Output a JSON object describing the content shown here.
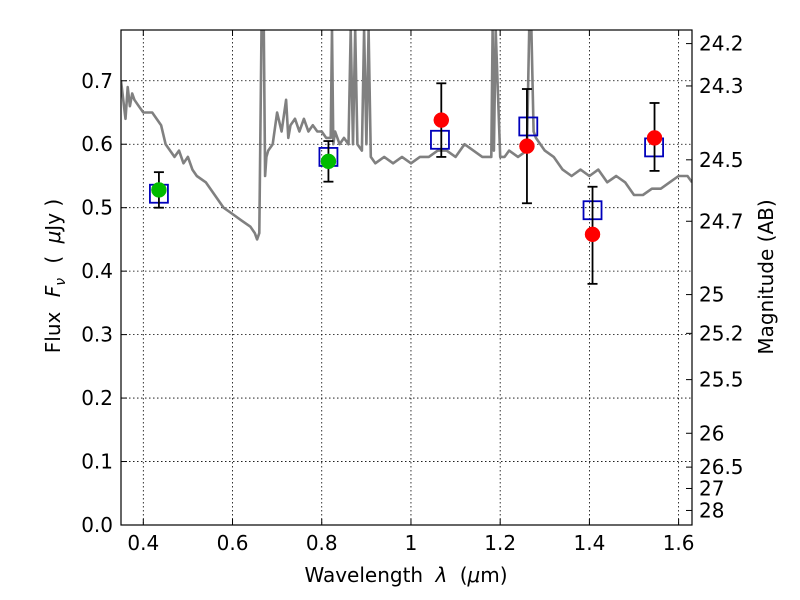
{
  "chart_data": {
    "type": "scatter",
    "xlabel_parts": {
      "pre": "Wavelength",
      "sym": "λ",
      "open": "(",
      "unit_mu": "μ",
      "unit_rest": "m)"
    },
    "ylabel_parts": {
      "pre": "Flux",
      "sym": "F",
      "sub": "ν",
      "open": "(",
      "unit_mu": "μ",
      "unit_rest": "Jy )"
    },
    "y2label": "Magnitude (AB)",
    "xlim": [
      0.35,
      1.63
    ],
    "ylim": [
      0.0,
      0.78
    ],
    "grid": true,
    "x_ticks": [
      {
        "value": 0.4,
        "label": "0.4"
      },
      {
        "value": 0.6,
        "label": "0.6"
      },
      {
        "value": 0.8,
        "label": "0.8"
      },
      {
        "value": 1.0,
        "label": "1"
      },
      {
        "value": 1.2,
        "label": "1.2"
      },
      {
        "value": 1.4,
        "label": "1.4"
      },
      {
        "value": 1.6,
        "label": "1.6"
      }
    ],
    "y_ticks": [
      {
        "value": 0.0,
        "label": "0.0"
      },
      {
        "value": 0.1,
        "label": "0.1"
      },
      {
        "value": 0.2,
        "label": "0.2"
      },
      {
        "value": 0.3,
        "label": "0.3"
      },
      {
        "value": 0.4,
        "label": "0.4"
      },
      {
        "value": 0.5,
        "label": "0.5"
      },
      {
        "value": 0.6,
        "label": "0.6"
      },
      {
        "value": 0.7,
        "label": "0.7"
      }
    ],
    "y2_ticks": [
      {
        "mag": 24.2,
        "label": "24.2"
      },
      {
        "mag": 24.3,
        "label": "24.3"
      },
      {
        "mag": 24.5,
        "label": "24.5"
      },
      {
        "mag": 24.7,
        "label": "24.7"
      },
      {
        "mag": 25.0,
        "label": "25"
      },
      {
        "mag": 25.2,
        "label": "25.2"
      },
      {
        "mag": 25.5,
        "label": "25.5"
      },
      {
        "mag": 26.0,
        "label": "26"
      },
      {
        "mag": 26.5,
        "label": "26.5"
      },
      {
        "mag": 27.0,
        "label": "27"
      },
      {
        "mag": 28.0,
        "label": "28"
      }
    ],
    "series": [
      {
        "kind": "line",
        "color": "#808080",
        "x": [
          0.35,
          0.36,
          0.365,
          0.37,
          0.375,
          0.38,
          0.39,
          0.4,
          0.42,
          0.44,
          0.45,
          0.46,
          0.47,
          0.48,
          0.49,
          0.5,
          0.51,
          0.52,
          0.54,
          0.56,
          0.58,
          0.6,
          0.62,
          0.64,
          0.65,
          0.655,
          0.66,
          0.665,
          0.67,
          0.673,
          0.676,
          0.68,
          0.69,
          0.7,
          0.71,
          0.72,
          0.725,
          0.73,
          0.74,
          0.75,
          0.76,
          0.77,
          0.78,
          0.79,
          0.8,
          0.81,
          0.82,
          0.823,
          0.826,
          0.83,
          0.84,
          0.85,
          0.86,
          0.865,
          0.87,
          0.875,
          0.88,
          0.89,
          0.895,
          0.9,
          0.905,
          0.91,
          0.92,
          0.94,
          0.96,
          0.98,
          1.0,
          1.02,
          1.04,
          1.06,
          1.08,
          1.1,
          1.12,
          1.14,
          1.16,
          1.18,
          1.183,
          1.186,
          1.19,
          1.2,
          1.21,
          1.22,
          1.24,
          1.26,
          1.265,
          1.27,
          1.275,
          1.28,
          1.3,
          1.32,
          1.34,
          1.36,
          1.38,
          1.4,
          1.42,
          1.44,
          1.46,
          1.48,
          1.5,
          1.52,
          1.54,
          1.56,
          1.58,
          1.6,
          1.62,
          1.63
        ],
        "y": [
          0.7,
          0.64,
          0.69,
          0.66,
          0.68,
          0.67,
          0.66,
          0.65,
          0.65,
          0.63,
          0.6,
          0.59,
          0.58,
          0.59,
          0.57,
          0.58,
          0.56,
          0.55,
          0.54,
          0.52,
          0.5,
          0.49,
          0.48,
          0.47,
          0.46,
          0.45,
          0.46,
          0.78,
          0.78,
          0.55,
          0.58,
          0.59,
          0.6,
          0.65,
          0.62,
          0.67,
          0.61,
          0.63,
          0.64,
          0.62,
          0.64,
          0.62,
          0.63,
          0.62,
          0.62,
          0.61,
          0.61,
          0.78,
          0.6,
          0.62,
          0.6,
          0.61,
          0.6,
          0.78,
          0.6,
          0.78,
          0.6,
          0.59,
          0.78,
          0.6,
          0.78,
          0.58,
          0.57,
          0.58,
          0.57,
          0.58,
          0.57,
          0.58,
          0.58,
          0.59,
          0.59,
          0.58,
          0.6,
          0.59,
          0.58,
          0.58,
          0.78,
          0.59,
          0.78,
          0.58,
          0.58,
          0.59,
          0.58,
          0.59,
          0.78,
          0.78,
          0.62,
          0.61,
          0.59,
          0.58,
          0.56,
          0.55,
          0.56,
          0.55,
          0.56,
          0.54,
          0.55,
          0.54,
          0.52,
          0.52,
          0.53,
          0.53,
          0.54,
          0.55,
          0.55,
          0.54
        ]
      },
      {
        "kind": "squares",
        "color": "#0000bb",
        "x": [
          0.435,
          0.815,
          1.065,
          1.263,
          1.407,
          1.545
        ],
        "y": [
          0.522,
          0.58,
          0.607,
          0.628,
          0.496,
          0.595
        ]
      },
      {
        "kind": "points",
        "color": "#00bb00",
        "x": [
          0.435,
          0.815
        ],
        "y": [
          0.528,
          0.573
        ],
        "yerr": [
          0.028,
          0.032
        ]
      },
      {
        "kind": "points",
        "color": "#ff0000",
        "x": [
          1.068,
          1.26,
          1.407,
          1.546
        ],
        "y": [
          0.638,
          0.597,
          0.458,
          0.61
        ],
        "yerr_low": [
          0.058,
          0.09,
          0.078,
          0.052
        ],
        "yerr_high": [
          0.058,
          0.09,
          0.075,
          0.055
        ]
      }
    ]
  }
}
